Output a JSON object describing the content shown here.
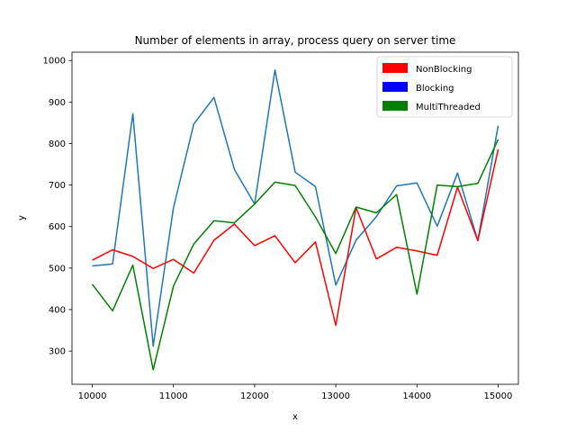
{
  "chart_data": {
    "type": "line",
    "title": "Number of elements in array, process query on server time",
    "xlabel": "x",
    "ylabel": "y",
    "xlim": [
      9750,
      15250
    ],
    "ylim": [
      220,
      1020
    ],
    "x_ticks": [
      10000,
      11000,
      12000,
      13000,
      14000,
      15000
    ],
    "y_ticks": [
      300,
      400,
      500,
      600,
      700,
      800,
      900,
      1000
    ],
    "grid": false,
    "legend_position": "top-right",
    "legend": [
      {
        "label": "NonBlocking",
        "color": "#ff0000"
      },
      {
        "label": "Blocking",
        "color": "#0000ff"
      },
      {
        "label": "MultiThreaded",
        "color": "#008000"
      }
    ],
    "x": [
      10000,
      10250,
      10500,
      10750,
      11000,
      11250,
      11500,
      11750,
      12000,
      12250,
      12500,
      12750,
      13000,
      13250,
      13500,
      13750,
      14000,
      14250,
      14500,
      14750,
      15000
    ],
    "series": [
      {
        "color": "#1f77b4",
        "values": [
          505,
          510,
          872,
          312,
          645,
          847,
          911,
          738,
          654,
          977,
          731,
          696,
          459,
          567,
          624,
          698,
          705,
          601,
          729,
          566,
          843
        ]
      },
      {
        "color": "#ff0000",
        "values": [
          519,
          544,
          528,
          499,
          521,
          488,
          567,
          606,
          554,
          578,
          513,
          563,
          362,
          646,
          522,
          550,
          541,
          531,
          695,
          566,
          786
        ]
      },
      {
        "color": "#008000",
        "values": [
          461,
          397,
          507,
          255,
          456,
          558,
          614,
          609,
          654,
          707,
          699,
          623,
          535,
          647,
          633,
          677,
          437,
          700,
          696,
          704,
          810
        ]
      }
    ]
  }
}
